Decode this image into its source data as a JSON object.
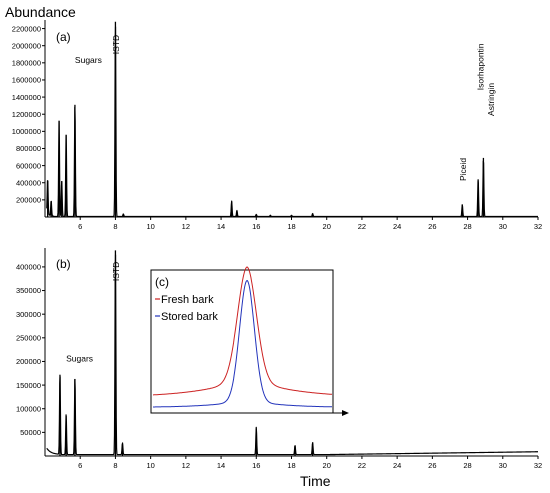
{
  "figure": {
    "ylabel": "Abundance",
    "xlabel": "Time"
  },
  "chart_data": [
    {
      "panel": "(a)",
      "type": "line",
      "xlim": [
        4,
        32
      ],
      "ylim": [
        0,
        2300000
      ],
      "xticks": [
        6,
        8,
        10,
        12,
        14,
        16,
        18,
        20,
        22,
        24,
        26,
        28,
        30,
        32
      ],
      "yticks": [
        200000,
        400000,
        600000,
        800000,
        1000000,
        1200000,
        1400000,
        1600000,
        1800000,
        2000000,
        2200000
      ],
      "peaks": [
        {
          "x": 4.15,
          "y": 420000
        },
        {
          "x": 4.35,
          "y": 180000
        },
        {
          "x": 4.8,
          "y": 1120000
        },
        {
          "x": 4.95,
          "y": 420000
        },
        {
          "x": 5.2,
          "y": 960000
        },
        {
          "x": 5.7,
          "y": 1310000
        },
        {
          "x": 8.0,
          "y": 2280000
        },
        {
          "x": 8.45,
          "y": 30000
        },
        {
          "x": 14.6,
          "y": 180000
        },
        {
          "x": 14.9,
          "y": 70000
        },
        {
          "x": 16.0,
          "y": 25000
        },
        {
          "x": 16.8,
          "y": 15000
        },
        {
          "x": 18.0,
          "y": 15000
        },
        {
          "x": 19.2,
          "y": 35000
        },
        {
          "x": 27.7,
          "y": 140000
        },
        {
          "x": 28.6,
          "y": 440000
        },
        {
          "x": 28.9,
          "y": 690000
        }
      ],
      "annotations": [
        {
          "text": "Sugars",
          "x": 5.7,
          "y": 1800000
        },
        {
          "text": "ISTD",
          "x": 8.2,
          "y": 1900000
        },
        {
          "text": "Piceid",
          "x": 27.9,
          "y": 420000
        },
        {
          "text": "Isorhapontin",
          "x": 28.9,
          "y": 1480000
        },
        {
          "text": "Astringin",
          "x": 29.5,
          "y": 1180000
        }
      ]
    },
    {
      "panel": "(b)",
      "type": "line",
      "xlim": [
        4,
        32
      ],
      "ylim": [
        0,
        440000
      ],
      "xticks": [
        6,
        8,
        10,
        12,
        14,
        16,
        18,
        20,
        22,
        24,
        26,
        28,
        30,
        32
      ],
      "yticks": [
        50000,
        100000,
        150000,
        200000,
        250000,
        300000,
        350000,
        400000
      ],
      "peaks": [
        {
          "x": 4.85,
          "y": 172000
        },
        {
          "x": 5.2,
          "y": 85000
        },
        {
          "x": 5.7,
          "y": 163000
        },
        {
          "x": 8.0,
          "y": 435000
        },
        {
          "x": 8.4,
          "y": 25000
        },
        {
          "x": 16.0,
          "y": 58000
        },
        {
          "x": 18.2,
          "y": 20000
        },
        {
          "x": 19.2,
          "y": 26000
        }
      ],
      "annotations": [
        {
          "text": "Sugars",
          "x": 5.2,
          "y": 200000
        },
        {
          "text": "ISTD",
          "x": 8.2,
          "y": 370000
        }
      ]
    },
    {
      "panel": "(c)",
      "type": "line",
      "series": [
        {
          "name": "Fresh bark",
          "color": "#cc2222"
        },
        {
          "name": "Stored bark",
          "color": "#2233bb"
        }
      ]
    }
  ],
  "colors": {
    "fresh": "#cc2222",
    "stored": "#2233bb",
    "trace": "#000000"
  }
}
